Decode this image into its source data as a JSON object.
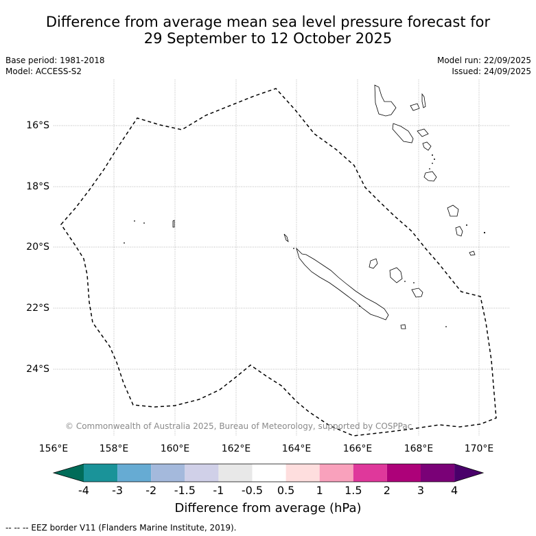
{
  "title": {
    "line1": "Difference from average mean sea level pressure forecast for",
    "line2": "29 September to 12 October 2025"
  },
  "meta": {
    "base_period": "Base period: 1981-2018",
    "model": "Model: ACCESS-S2",
    "model_run": "Model run: 22/09/2025",
    "issued": "Issued: 24/09/2025"
  },
  "map": {
    "lat_labels": [
      "16°S",
      "18°S",
      "20°S",
      "22°S",
      "24°S"
    ],
    "lon_labels": [
      "156°E",
      "158°E",
      "160°E",
      "162°E",
      "164°E",
      "166°E",
      "168°E",
      "170°E"
    ],
    "copyright": "© Commonwealth of Australia 2025, Bureau of Meteorology, supported by COSPPac",
    "fill_color": "#ffffff",
    "grid_color": "#999999"
  },
  "colorbar": {
    "ticks": [
      "-4",
      "-3",
      "-2",
      "-1.5",
      "-1",
      "-0.5",
      "0.5",
      "1",
      "1.5",
      "2",
      "3",
      "4"
    ],
    "colors": [
      "#1a9399",
      "#66abd3",
      "#a4b9dc",
      "#d0d0e8",
      "#e8e8e8",
      "#ffffff",
      "#fedede",
      "#f9a1bc",
      "#df389b",
      "#ad0179",
      "#7a0177"
    ],
    "under_color": "#016c59",
    "over_color": "#49006a",
    "title": "Difference from average (hPa)"
  },
  "footer": {
    "legend": "--  --  -- EEZ border V11 (Flanders Marine Institute, 2019)."
  }
}
